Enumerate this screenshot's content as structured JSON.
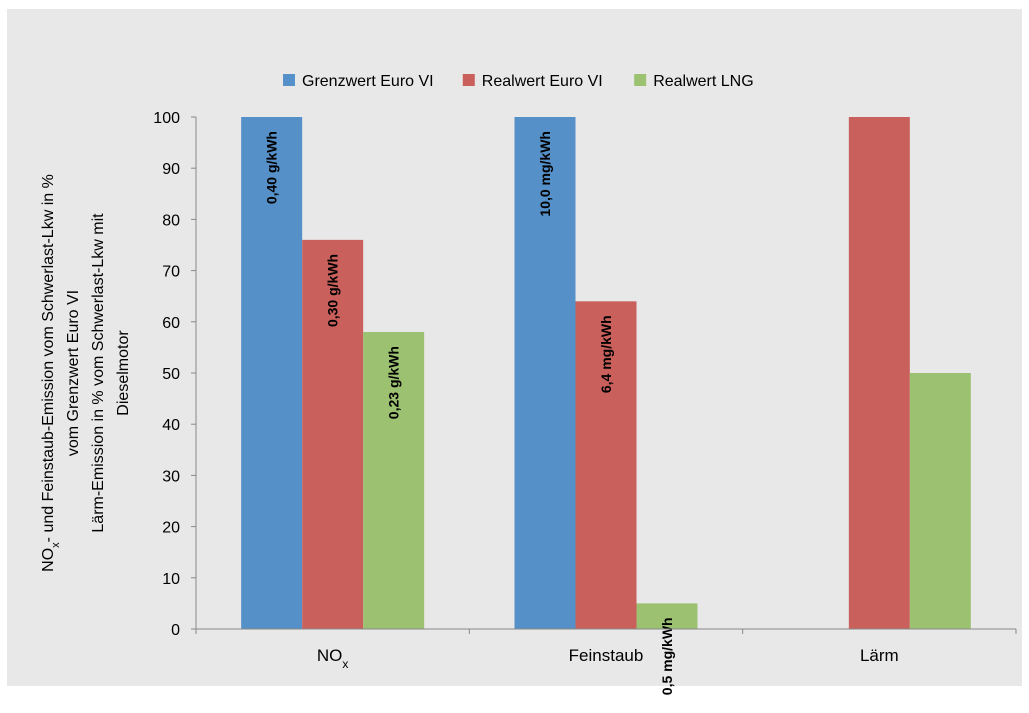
{
  "chart_data": {
    "type": "bar",
    "categories": [
      "NOx",
      "Feinstaub",
      "Lärm"
    ],
    "category_labels": [
      {
        "main": "NO",
        "sub": "x"
      },
      {
        "main": "Feinstaub",
        "sub": ""
      },
      {
        "main": "Lärm",
        "sub": ""
      }
    ],
    "series": [
      {
        "name": "Grenzwert Euro VI",
        "color": "#5590c8",
        "values": [
          100,
          100,
          null
        ],
        "labels": [
          "0,40 g/kWh",
          "10,0 mg/kWh",
          ""
        ]
      },
      {
        "name": "Realwert Euro VI",
        "color": "#c9605b",
        "values": [
          76,
          64,
          100
        ],
        "labels": [
          "0,30 g/kWh",
          "6,4 mg/kWh",
          ""
        ]
      },
      {
        "name": "Realwert LNG",
        "color": "#9bc171",
        "values": [
          58,
          5,
          50
        ],
        "labels": [
          "0,23 g/kWh",
          "0,5 mg/kWh",
          ""
        ]
      }
    ],
    "ylim": [
      0,
      100
    ],
    "yticks": [
      0,
      10,
      20,
      30,
      40,
      50,
      60,
      70,
      80,
      90,
      100
    ],
    "ylabel_lines": [
      {
        "main": "NO",
        "sub": "x",
        "rest": "- und Feinstaub-Emission vom Schwerlast-Lkw in %"
      },
      {
        "main": "vom Grenzwert Euro VI",
        "sub": "",
        "rest": ""
      },
      {
        "main": "Lärm-Emission in % vom Schwerlast-Lkw mit",
        "sub": "",
        "rest": ""
      },
      {
        "main": "Dieselmotor",
        "sub": "",
        "rest": ""
      }
    ],
    "legend_position": "top",
    "grid": false
  }
}
